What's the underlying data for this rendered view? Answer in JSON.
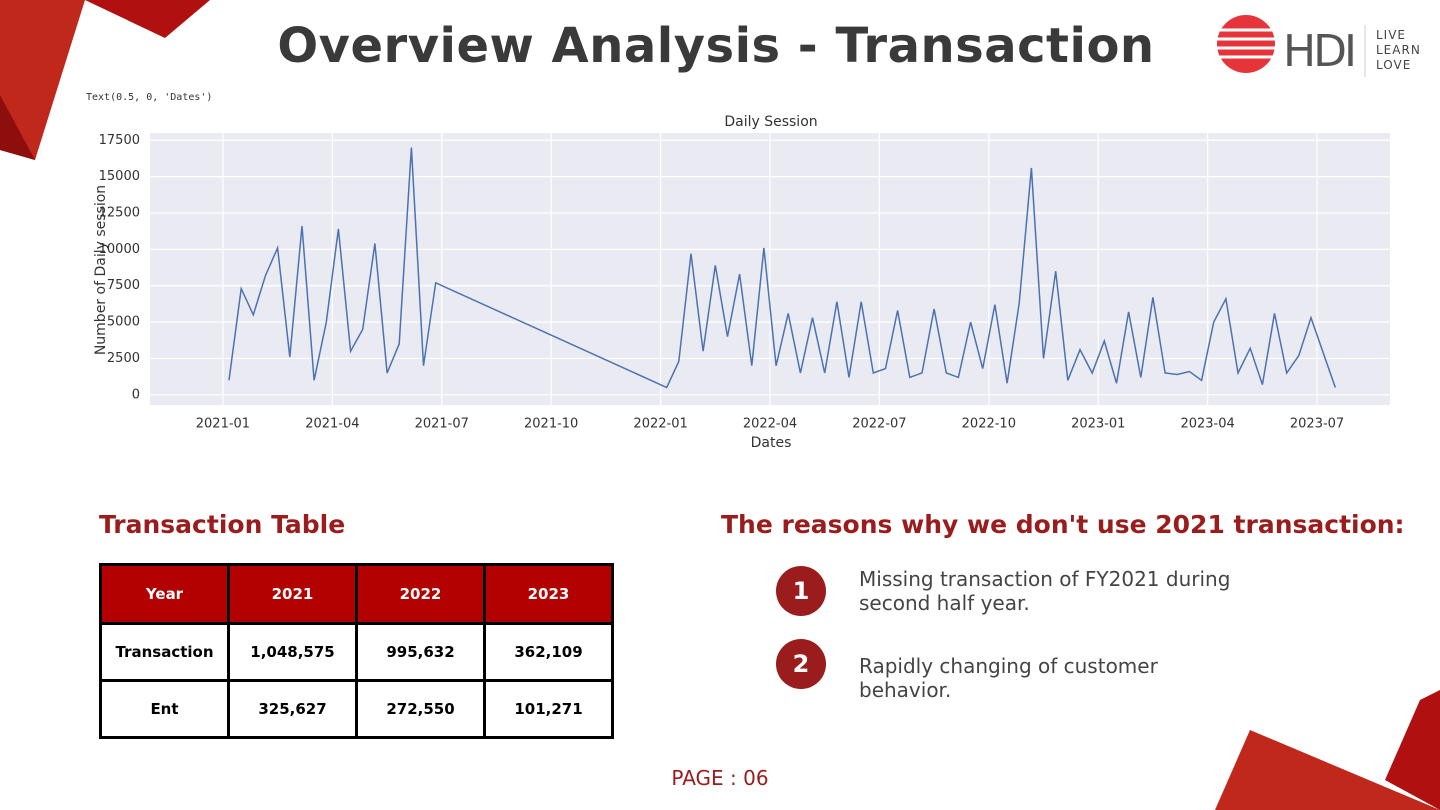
{
  "header": {
    "title": "Overview Analysis - Transaction",
    "logo": "HDI",
    "tagline": [
      "LIVE",
      "LEARN",
      "LOVE"
    ]
  },
  "code_output": "Text(0.5, 0, 'Dates')",
  "chart_data": {
    "type": "line",
    "title": "Daily Session",
    "xlabel": "Dates",
    "ylabel": "Number of Daily session",
    "x": [
      "2021-01",
      "2021-01",
      "2021-01",
      "2021-02",
      "2021-02",
      "2021-02",
      "2021-03",
      "2021-03",
      "2021-03",
      "2021-04",
      "2021-04",
      "2021-04",
      "2021-05",
      "2021-05",
      "2021-05",
      "2021-06",
      "2021-06",
      "2021-06",
      "2022-01",
      "2022-01",
      "2022-01",
      "2022-02",
      "2022-02",
      "2022-02",
      "2022-03",
      "2022-03",
      "2022-03",
      "2022-04",
      "2022-04",
      "2022-04",
      "2022-05",
      "2022-05",
      "2022-05",
      "2022-06",
      "2022-06",
      "2022-06",
      "2022-07",
      "2022-07",
      "2022-07",
      "2022-08",
      "2022-08",
      "2022-08",
      "2022-09",
      "2022-09",
      "2022-09",
      "2022-10",
      "2022-10",
      "2022-10",
      "2022-11",
      "2022-11",
      "2022-11",
      "2022-12",
      "2022-12",
      "2022-12",
      "2023-01",
      "2023-01",
      "2023-01",
      "2023-02",
      "2023-02",
      "2023-02",
      "2023-03",
      "2023-03",
      "2023-03",
      "2023-04",
      "2023-04",
      "2023-04",
      "2023-05",
      "2023-05",
      "2023-05",
      "2023-06",
      "2023-06",
      "2023-06",
      "2023-07"
    ],
    "series": [
      {
        "name": "Daily session",
        "color": "#4c72b0",
        "values": [
          1000,
          7300,
          5500,
          8200,
          10100,
          2600,
          11600,
          1000,
          5000,
          11400,
          3000,
          4500,
          10400,
          1500,
          3500,
          17000,
          2000,
          7700,
          500,
          2300,
          9700,
          3000,
          8900,
          4000,
          8300,
          2000,
          10100,
          2000,
          5600,
          1500,
          5300,
          1500,
          6400,
          1200,
          6400,
          1500,
          1800,
          5800,
          1200,
          1500,
          5900,
          1500,
          1200,
          5000,
          1800,
          6200,
          800,
          6300,
          15600,
          2500,
          8500,
          1000,
          3100,
          1500,
          3700,
          800,
          5700,
          1200,
          6700,
          1500,
          1400,
          1600,
          1000,
          5000,
          6600,
          1500,
          3200,
          700,
          5600,
          1500,
          2700,
          5300,
          500
        ]
      }
    ],
    "xlim": [
      "2020-11",
      "2023-09"
    ],
    "xticks": [
      "2021-01",
      "2021-04",
      "2021-07",
      "2021-10",
      "2022-01",
      "2022-04",
      "2022-07",
      "2022-10",
      "2023-01",
      "2023-04",
      "2023-07"
    ],
    "ylim": [
      -700,
      18000
    ],
    "yticks": [
      0,
      2500,
      5000,
      7500,
      10000,
      12500,
      15000,
      17500
    ],
    "grid": true
  },
  "table": {
    "title": "Transaction Table",
    "header": [
      "Year",
      "2021",
      "2022",
      "2023"
    ],
    "rows": [
      [
        "Transaction",
        "1,048,575",
        "995,632",
        "362,109"
      ],
      [
        "Ent",
        "325,627",
        "272,550",
        "101,271"
      ]
    ]
  },
  "reasons": {
    "title": "The reasons why we don't use 2021 transaction:",
    "items": [
      {
        "number": "1",
        "text": "Missing transaction of FY2021 during second half year."
      },
      {
        "number": "2",
        "text": "Rapidly changing of customer behavior."
      }
    ]
  },
  "footer": {
    "page": "PAGE : 06"
  }
}
